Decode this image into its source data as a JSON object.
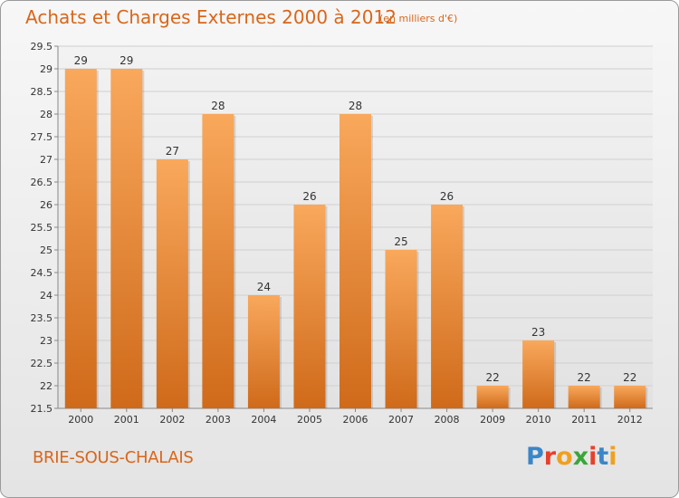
{
  "header": {
    "title": "Achats et Charges Externes 2000 à 2012",
    "subtitle": "(en milliers d'€)"
  },
  "footer": {
    "city": "BRIE-SOUS-CHALAIS",
    "logo": "Proxiti"
  },
  "colors": {
    "accent": "#d9661a",
    "bar_top": "#f9a85c",
    "bar_bottom": "#cf6a1a"
  },
  "chart_data": {
    "type": "bar",
    "categories": [
      "2000",
      "2001",
      "2002",
      "2003",
      "2004",
      "2005",
      "2006",
      "2007",
      "2008",
      "2009",
      "2010",
      "2011",
      "2012"
    ],
    "values": [
      29,
      29,
      27,
      28,
      24,
      26,
      28,
      25,
      26,
      22,
      23,
      22,
      22
    ],
    "ylim": [
      21.5,
      29.5
    ],
    "yticks": [
      21.5,
      22,
      22.5,
      23,
      23.5,
      24,
      24.5,
      25,
      25.5,
      26,
      26.5,
      27,
      27.5,
      28,
      28.5,
      29,
      29.5
    ],
    "ytick_labels": [
      "21.5",
      "22",
      "22.5",
      "23",
      "23.5",
      "24",
      "24.5",
      "25",
      "25.5",
      "26",
      "26.5",
      "27",
      "27.5",
      "28",
      "28.5",
      "29",
      "29.5"
    ],
    "grid": true
  }
}
